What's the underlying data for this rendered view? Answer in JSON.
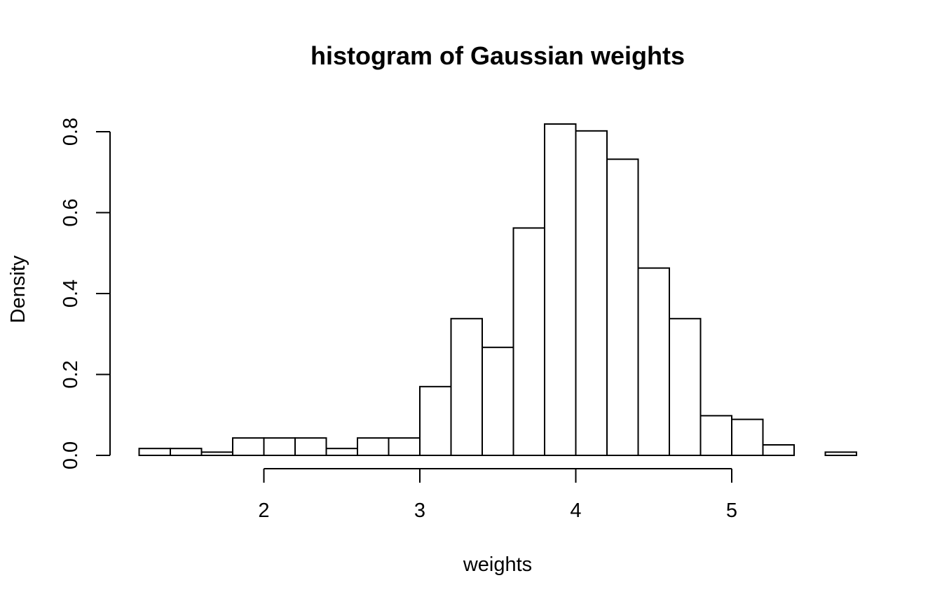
{
  "chart_data": {
    "type": "bar",
    "title": "histogram of Gaussian weights",
    "xlabel": "weights",
    "ylabel": "Density",
    "bin_width": 0.2,
    "bin_start": 1.2,
    "densities": [
      0.017,
      0.017,
      0.008,
      0.043,
      0.043,
      0.043,
      0.017,
      0.043,
      0.043,
      0.17,
      0.338,
      0.267,
      0.562,
      0.819,
      0.802,
      0.732,
      0.463,
      0.338,
      0.098,
      0.089,
      0.026,
      0.0,
      0.008
    ],
    "xlim": [
      1.2,
      5.8
    ],
    "ylim": [
      0,
      0.8
    ],
    "x_axis_range": [
      2,
      5
    ],
    "x_ticks": [
      2,
      3,
      4,
      5
    ],
    "x_tick_labels": [
      "2",
      "3",
      "4",
      "5"
    ],
    "y_ticks": [
      0.0,
      0.2,
      0.4,
      0.6,
      0.8
    ],
    "y_tick_labels": [
      "0.0",
      "0.2",
      "0.4",
      "0.6",
      "0.8"
    ],
    "grid": false,
    "legend": "none"
  }
}
